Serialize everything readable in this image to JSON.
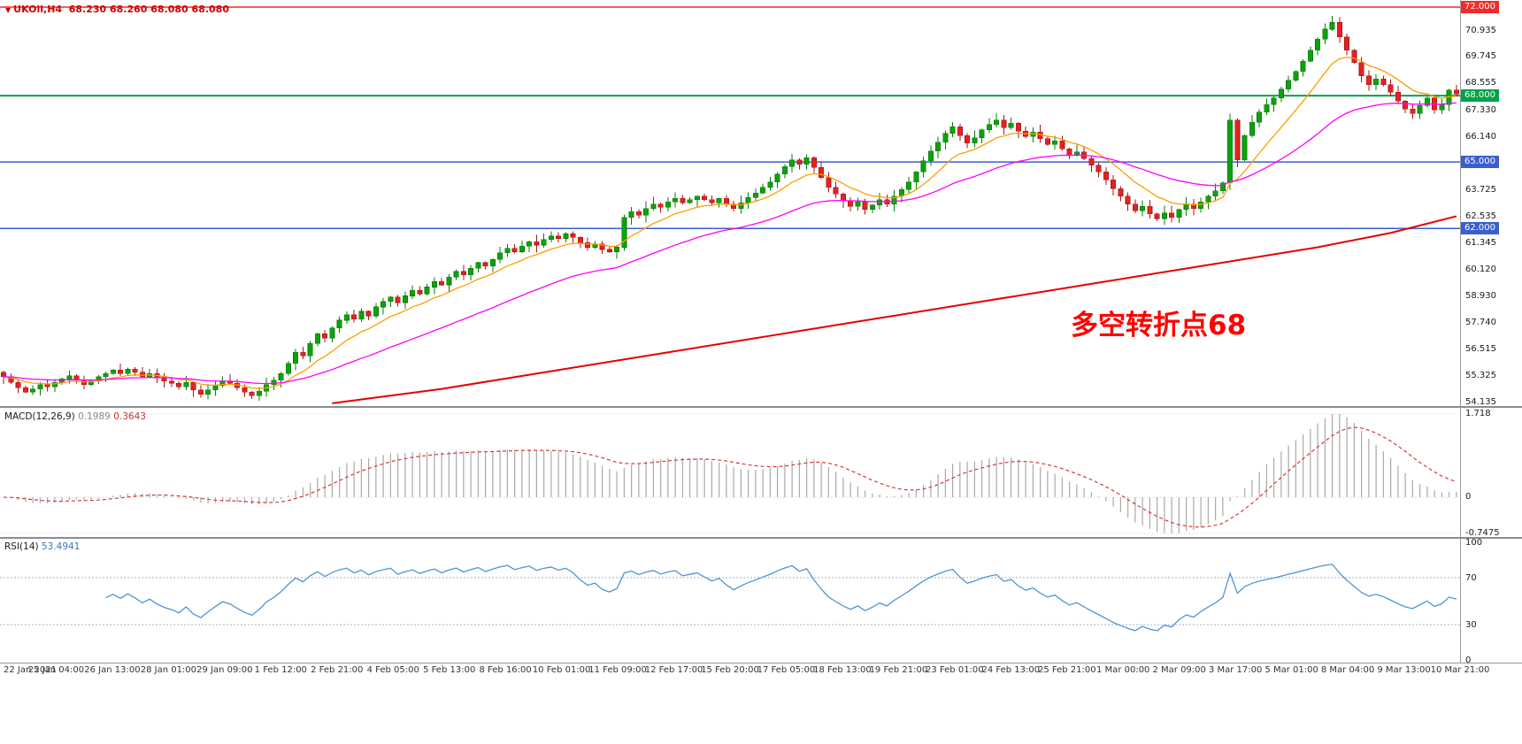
{
  "header": {
    "symbol_line": "UKOil,H4  68.230 68.260 68.080 68.080"
  },
  "annotation": {
    "text": "多空转折点68",
    "color": "#ff0000"
  },
  "price_scale": {
    "ticks": [
      "70.935",
      "69.745",
      "68.555",
      "67.330",
      "66.140",
      "63.725",
      "62.535",
      "61.345",
      "60.120",
      "58.930",
      "57.740",
      "56.515",
      "55.325",
      "54.135"
    ],
    "badges": [
      {
        "label": "72.000",
        "price": 72.0,
        "color": "#f02b2b"
      },
      {
        "label": "68.000",
        "price": 68.0,
        "color": "#00a248"
      },
      {
        "label": "65.000",
        "price": 65.0,
        "color": "#3a5fcd"
      },
      {
        "label": "62.000",
        "price": 62.0,
        "color": "#3a5fcd"
      }
    ]
  },
  "macd_panel": {
    "label": "MACD(12,26,9)",
    "value_macd": "0.1989",
    "value_signal": "0.3643",
    "ticks": [
      "1.718",
      "0",
      "-0.7475"
    ]
  },
  "rsi_panel": {
    "label": "RSI(14)",
    "value": "53.4941",
    "ticks": [
      "100",
      "70",
      "30",
      "0"
    ]
  },
  "time_axis": {
    "labels": [
      "22 Jan 2021",
      "25 Jan 04:00",
      "26 Jan 13:00",
      "28 Jan 01:00",
      "29 Jan 09:00",
      "1 Feb 12:00",
      "2 Feb 21:00",
      "4 Feb 05:00",
      "5 Feb 13:00",
      "8 Feb 16:00",
      "10 Feb 01:00",
      "11 Feb 09:00",
      "12 Feb 17:00",
      "15 Feb 20:00",
      "17 Feb 05:00",
      "18 Feb 13:00",
      "19 Feb 21:00",
      "23 Feb 01:00",
      "24 Feb 13:00",
      "25 Feb 21:00",
      "1 Mar 00:00",
      "2 Mar 09:00",
      "3 Mar 17:00",
      "5 Mar 01:00",
      "8 Mar 04:00",
      "9 Mar 13:00",
      "10 Mar 21:00"
    ]
  },
  "chart_data": [
    {
      "id": "price",
      "type": "candlestick",
      "symbol": "UKOil",
      "timeframe": "H4",
      "open": "68.230",
      "high": "68.260",
      "low": "68.080",
      "close": "68.080",
      "y_range": [
        54.135,
        72.0
      ],
      "closes": [
        55.3,
        55.05,
        54.8,
        54.6,
        54.75,
        54.95,
        54.85,
        55.05,
        55.2,
        55.35,
        55.15,
        54.95,
        55.1,
        55.3,
        55.45,
        55.6,
        55.45,
        55.65,
        55.5,
        55.3,
        55.45,
        55.25,
        55.1,
        55.0,
        54.85,
        55.05,
        54.7,
        54.5,
        54.7,
        54.9,
        55.1,
        55.0,
        54.8,
        54.6,
        54.45,
        54.65,
        54.95,
        55.15,
        55.45,
        55.9,
        56.4,
        56.25,
        56.8,
        57.25,
        57.05,
        57.5,
        57.85,
        58.1,
        57.9,
        58.25,
        58.05,
        58.45,
        58.7,
        58.9,
        58.65,
        58.95,
        59.2,
        59.05,
        59.35,
        59.6,
        59.45,
        59.8,
        60.05,
        59.9,
        60.2,
        60.45,
        60.3,
        60.6,
        60.9,
        61.1,
        60.95,
        61.2,
        61.4,
        61.25,
        61.5,
        61.65,
        61.55,
        61.75,
        61.6,
        61.35,
        61.15,
        61.3,
        61.05,
        60.95,
        61.15,
        62.5,
        62.75,
        62.6,
        62.9,
        63.1,
        62.95,
        63.2,
        63.35,
        63.15,
        63.3,
        63.45,
        63.3,
        63.15,
        63.35,
        63.1,
        62.9,
        63.15,
        63.4,
        63.6,
        63.85,
        64.1,
        64.45,
        64.8,
        65.1,
        64.9,
        65.2,
        64.75,
        64.3,
        63.85,
        63.55,
        63.25,
        63.0,
        63.2,
        62.85,
        63.05,
        63.3,
        63.1,
        63.45,
        63.75,
        64.1,
        64.55,
        65.05,
        65.5,
        65.9,
        66.3,
        66.6,
        66.2,
        65.85,
        66.1,
        66.45,
        66.7,
        66.9,
        66.55,
        66.75,
        66.4,
        66.15,
        66.35,
        66.05,
        65.8,
        65.95,
        65.6,
        65.3,
        65.45,
        65.15,
        64.85,
        64.55,
        64.2,
        63.8,
        63.45,
        63.1,
        62.8,
        63.0,
        62.65,
        62.45,
        62.7,
        62.5,
        62.85,
        63.1,
        62.9,
        63.2,
        63.45,
        63.7,
        64.05,
        66.9,
        65.1,
        66.2,
        66.8,
        67.25,
        67.6,
        67.9,
        68.3,
        68.7,
        69.1,
        69.55,
        70.05,
        70.55,
        71.0,
        71.3,
        70.65,
        70.05,
        69.5,
        68.9,
        68.5,
        68.75,
        68.5,
        68.15,
        67.75,
        67.4,
        67.2,
        67.55,
        67.9,
        67.35,
        67.6,
        68.25,
        68.08
      ],
      "horizontal_levels": [
        {
          "price": 72.0,
          "color": "#f02b2b",
          "width": 1.5
        },
        {
          "price": 68.0,
          "color": "#00a248",
          "width": 2
        },
        {
          "price": 65.0,
          "color": "#3a5fcd",
          "width": 1.5
        },
        {
          "price": 62.0,
          "color": "#3a5fcd",
          "width": 1.5
        }
      ],
      "moving_averages": {
        "fast": {
          "period": 10,
          "color": "#ff9d00"
        },
        "medium": {
          "period": 34,
          "color": "#ff00ff"
        },
        "slow_color": "#e60000",
        "slow_points": [
          [
            45,
            54.1
          ],
          [
            60,
            54.75
          ],
          [
            75,
            55.55
          ],
          [
            90,
            56.35
          ],
          [
            105,
            57.15
          ],
          [
            120,
            57.95
          ],
          [
            135,
            58.75
          ],
          [
            150,
            59.55
          ],
          [
            165,
            60.35
          ],
          [
            180,
            61.15
          ],
          [
            190,
            61.8
          ],
          [
            199,
            62.55
          ]
        ]
      }
    },
    {
      "id": "macd",
      "type": "macd",
      "params": [
        12,
        26,
        9
      ],
      "current": [
        0.1989,
        0.3643
      ],
      "y_range": [
        -0.7475,
        1.718
      ],
      "histogram_color": "#a9a9a9",
      "signal_color": "#d23b3b"
    },
    {
      "id": "rsi",
      "type": "line",
      "period": 14,
      "current": 53.4941,
      "y_range": [
        0,
        100
      ],
      "levels": [
        70,
        30
      ],
      "line_color": "#4f94d4"
    }
  ]
}
